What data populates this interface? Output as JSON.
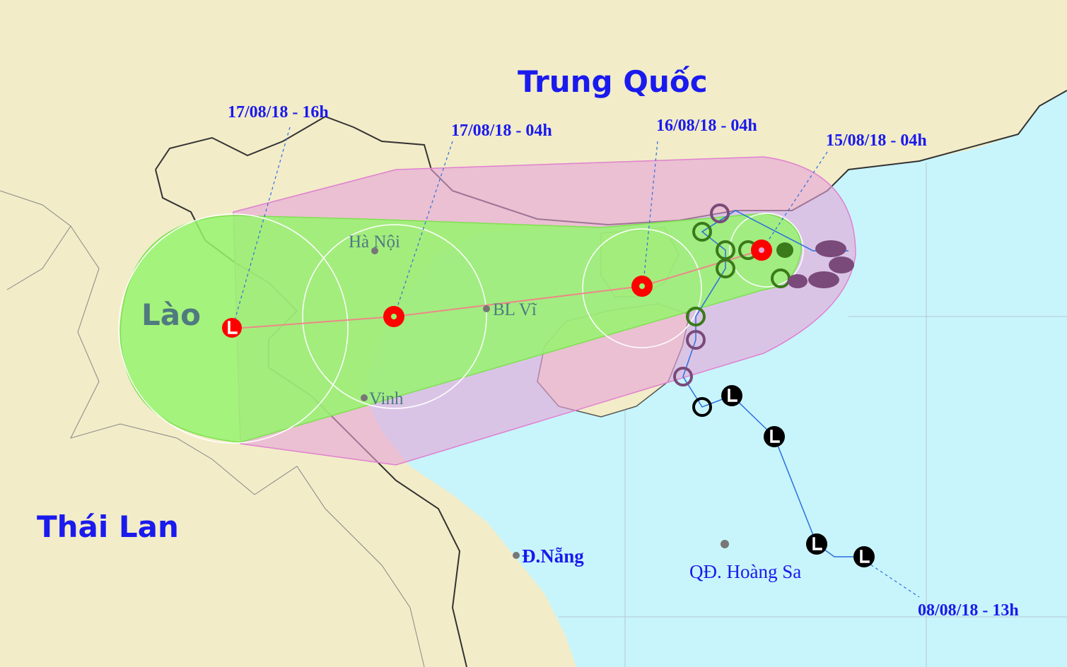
{
  "map": {
    "countries": {
      "china": "Trung Quốc",
      "laos": "Lào",
      "thailand": "Thái Lan"
    },
    "places": {
      "hanoi": "Hà Nội",
      "bach_long_vi": "BL Vĩ",
      "vinh": "Vinh",
      "da_nang": "Đ.Nẵng",
      "hoang_sa": "QĐ. Hoàng Sa"
    },
    "timestamps": [
      "17/08/18 - 16h",
      "17/08/18 - 04h",
      "16/08/18 - 04h",
      "15/08/18 - 04h",
      "08/08/18 - 13h"
    ],
    "colors": {
      "land": "#f2ecc8",
      "sea": "#c8f5fb",
      "risk_zone": "#e6a3d8",
      "strong_wind_zone": "#96f56e",
      "storm_current": "#ff0000",
      "track_past": "#2a6ee0"
    },
    "icons": {
      "current": "tropical-storm-icon",
      "forecast": "tropical-storm-icon",
      "final": "low-pressure-icon",
      "past_low": "low-pressure-icon",
      "past_circle": "tropical-depression-icon"
    }
  }
}
